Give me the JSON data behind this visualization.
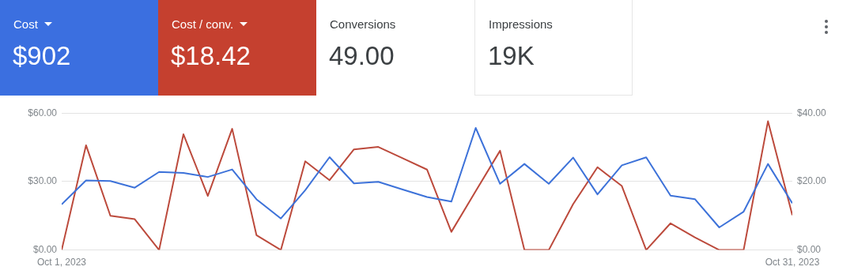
{
  "chart_data": [
    {
      "type": "other",
      "annotations": [
        "Cost",
        "$902",
        "Cost / conv.",
        "$18.42",
        "Conversions",
        "49.00",
        "Impressions",
        "19K"
      ],
      "colors": [
        "#3b6fe0",
        "#c5402f",
        null,
        null
      ]
    },
    {
      "type": "line",
      "x": [
        "2023-10-01",
        "2023-10-02",
        "2023-10-03",
        "2023-10-04",
        "2023-10-05",
        "2023-10-06",
        "2023-10-07",
        "2023-10-08",
        "2023-10-09",
        "2023-10-10",
        "2023-10-11",
        "2023-10-12",
        "2023-10-13",
        "2023-10-14",
        "2023-10-15",
        "2023-10-16",
        "2023-10-17",
        "2023-10-18",
        "2023-10-19",
        "2023-10-20",
        "2023-10-21",
        "2023-10-22",
        "2023-10-23",
        "2023-10-24",
        "2023-10-25",
        "2023-10-26",
        "2023-10-27",
        "2023-10-28",
        "2023-10-29",
        "2023-10-30",
        "2023-10-31"
      ],
      "series": [
        {
          "color": "#3d72d9",
          "values": [
            20,
            30.5,
            30.2,
            27.3,
            34.2,
            33.8,
            32,
            35.3,
            22.2,
            13.8,
            26.2,
            40.7,
            29.2,
            29.9,
            26.5,
            23.2,
            21.2,
            53.5,
            29,
            37.7,
            29,
            40.5,
            24.4,
            37.1,
            40.6,
            23.8,
            22.3,
            9.9,
            16.8,
            37.7,
            20.5
          ]
        },
        {
          "color": "#bc4a3c",
          "axis": "y2",
          "values": [
            0,
            30.6,
            10,
            9,
            0,
            33.8,
            15.8,
            35.4,
            4.3,
            0,
            25.9,
            20.4,
            29.4,
            30.1,
            26.8,
            23.5,
            5.3,
            17.2,
            29,
            0,
            0,
            13.4,
            24.2,
            18.7,
            0,
            7.8,
            3.7,
            0,
            0,
            37.6,
            10.2
          ]
        }
      ],
      "xlim": [
        "2023-10-01",
        "2023-10-31"
      ],
      "xticks": [
        {
          "value": "2023-10-01",
          "label": "Oct 1, 2023"
        },
        {
          "value": "2023-10-31",
          "label": "Oct 31, 2023"
        }
      ],
      "ylim": [
        0,
        60
      ],
      "yticks": [
        {
          "value": 0,
          "label": "$0.00"
        },
        {
          "value": 30,
          "label": "$30.00"
        },
        {
          "value": 60,
          "label": "$60.00"
        }
      ],
      "y2lim": [
        0,
        40
      ],
      "y2ticks": [
        {
          "value": 0,
          "label": "$0.00"
        },
        {
          "value": 20,
          "label": "$20.00"
        },
        {
          "value": 40,
          "label": "$40.00"
        }
      ],
      "grid": "y",
      "marker": "none",
      "line_style": "solid",
      "legend": false
    }
  ]
}
